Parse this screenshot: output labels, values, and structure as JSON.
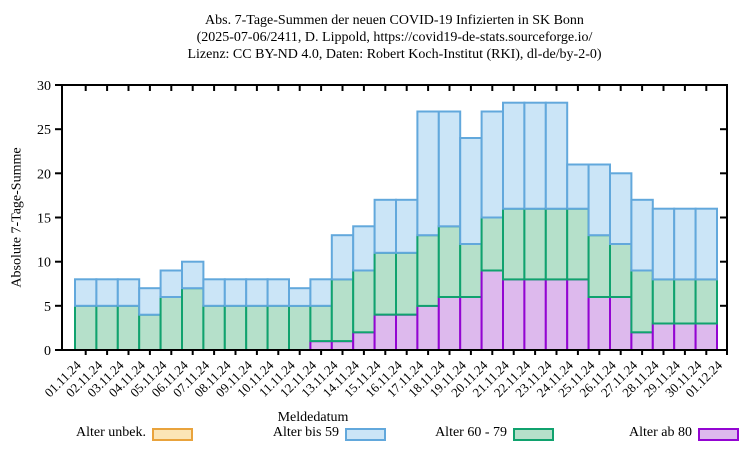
{
  "title": {
    "line1": "Abs. 7-Tage-Summen der neuen COVID-19 Infizierten in SK Bonn",
    "line2": "(2025-07-06/2411, D. Lippold, https://covid19-de-stats.sourceforge.io/",
    "line3": "Lizenz: CC BY-ND 4.0, Daten: Robert Koch-Institut (RKI), dl-de/by-2-0)"
  },
  "axes": {
    "y_label": "Absolute 7-Tage-Summe",
    "x_label": "Meldedatum",
    "y_ticks": [
      0,
      5,
      10,
      15,
      20,
      25,
      30
    ],
    "ylim": [
      0,
      30
    ]
  },
  "legend": [
    {
      "name": "Alter unbek.",
      "fill": "#fbe5b6",
      "border": "#e9a33c"
    },
    {
      "name": "Alter bis 59",
      "fill": "#cbe5f7",
      "border": "#62a8dc"
    },
    {
      "name": "Alter 60 - 79",
      "fill": "#b5e0ca",
      "border": "#10a26e"
    },
    {
      "name": "Alter ab 80",
      "fill": "#ddb9ed",
      "border": "#9305d2"
    }
  ],
  "chart_data": {
    "type": "bar",
    "stacked": true,
    "title": "Abs. 7-Tage-Summen der neuen COVID-19 Infizierten in SK Bonn",
    "xlabel": "Meldedatum",
    "ylabel": "Absolute 7-Tage-Summe",
    "ylim": [
      0,
      30
    ],
    "grid": false,
    "legend_position": "bottom",
    "categories": [
      "01.11.24",
      "02.11.24",
      "03.11.24",
      "04.11.24",
      "05.11.24",
      "06.11.24",
      "07.11.24",
      "08.11.24",
      "09.11.24",
      "10.11.24",
      "11.11.24",
      "12.11.24",
      "13.11.24",
      "14.11.24",
      "15.11.24",
      "16.11.24",
      "17.11.24",
      "18.11.24",
      "19.11.24",
      "20.11.24",
      "21.11.24",
      "22.11.24",
      "23.11.24",
      "24.11.24",
      "25.11.24",
      "26.11.24",
      "27.11.24",
      "28.11.24",
      "29.11.24",
      "30.11.24",
      "01.12.24"
    ],
    "series": [
      {
        "name": "Alter ab 80",
        "fill": "#ddb9ed",
        "border": "#9305d2",
        "values": [
          0,
          0,
          0,
          0,
          0,
          0,
          0,
          0,
          0,
          0,
          0,
          1,
          1,
          2,
          4,
          4,
          5,
          6,
          6,
          9,
          8,
          8,
          8,
          8,
          6,
          6,
          2,
          3,
          3,
          3,
          0
        ]
      },
      {
        "name": "Alter 60 - 79",
        "fill": "#b5e0ca",
        "border": "#10a26e",
        "values": [
          5,
          5,
          5,
          4,
          6,
          7,
          5,
          5,
          5,
          5,
          5,
          4,
          7,
          7,
          7,
          7,
          8,
          8,
          6,
          6,
          8,
          8,
          8,
          8,
          7,
          6,
          7,
          5,
          5,
          5,
          0
        ]
      },
      {
        "name": "Alter bis 59",
        "fill": "#cbe5f7",
        "border": "#62a8dc",
        "values": [
          3,
          3,
          3,
          3,
          3,
          3,
          3,
          3,
          3,
          3,
          2,
          3,
          5,
          5,
          6,
          6,
          14,
          13,
          12,
          12,
          12,
          12,
          12,
          5,
          8,
          8,
          8,
          8,
          8,
          8,
          0
        ]
      },
      {
        "name": "Alter unbek.",
        "fill": "#fbe5b6",
        "border": "#e9a33c",
        "values": [
          0,
          0,
          0,
          0,
          0,
          0,
          0,
          0,
          0,
          0,
          0,
          0,
          0,
          0,
          0,
          0,
          0,
          0,
          0,
          0,
          0,
          0,
          0,
          0,
          0,
          0,
          0,
          0,
          0,
          0,
          0
        ]
      }
    ],
    "stacked_totals": [
      8,
      8,
      8,
      7,
      9,
      10,
      8,
      8,
      8,
      8,
      7,
      8,
      13,
      14,
      17,
      17,
      27,
      27,
      24,
      27,
      28,
      28,
      28,
      21,
      21,
      20,
      17,
      16,
      16,
      16,
      0
    ]
  }
}
